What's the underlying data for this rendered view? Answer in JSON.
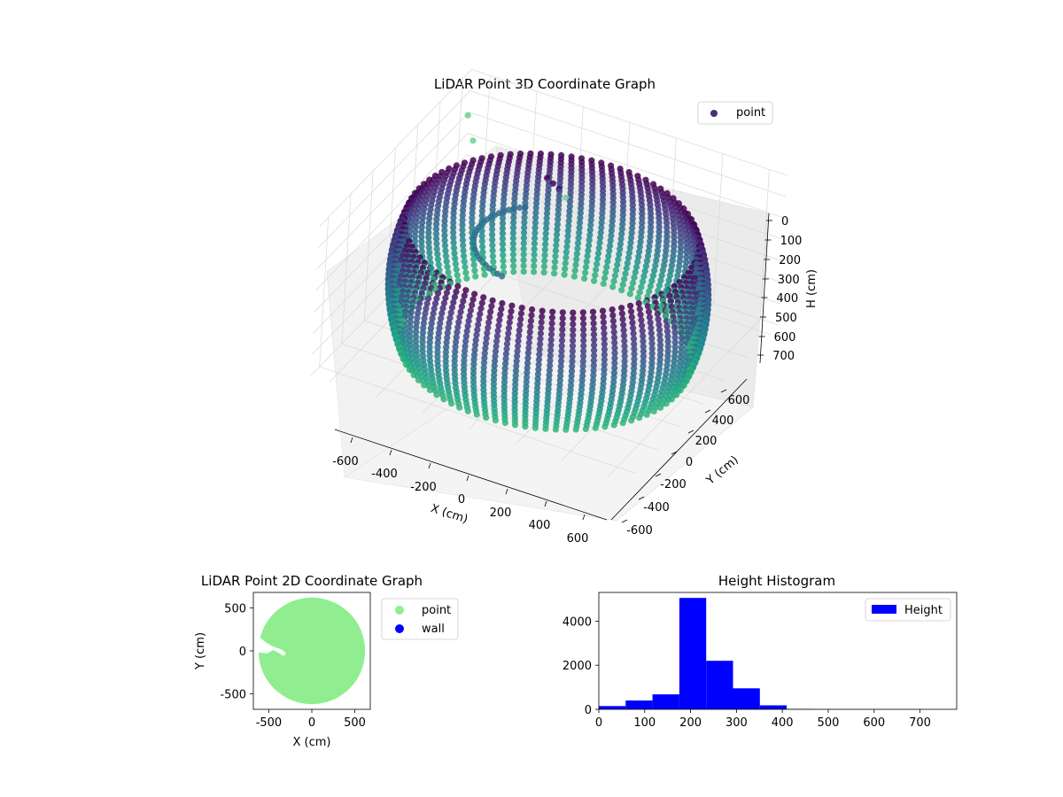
{
  "chart_data": [
    {
      "type": "scatter",
      "projection": "3d",
      "title": "LiDAR Point 3D Coordinate Graph",
      "xlabel": "X (cm)",
      "ylabel": "Y (cm)",
      "zlabel": "H (cm)",
      "xticks": [
        -600,
        -400,
        -200,
        0,
        200,
        400,
        600
      ],
      "yticks": [
        -600,
        -400,
        -200,
        0,
        200,
        400,
        600
      ],
      "zticks": [
        0,
        100,
        200,
        300,
        400,
        500,
        600,
        700
      ],
      "z_inverted": true,
      "grid": true,
      "legend": {
        "entries": [
          "point"
        ],
        "position": "top-right"
      },
      "colormap": "viridis",
      "series": [
        {
          "name": "point",
          "shape": "ring",
          "radius": 620,
          "z_range": [
            150,
            700
          ]
        }
      ]
    },
    {
      "type": "scatter",
      "title": "LiDAR Point 2D Coordinate Graph",
      "xlabel": "X (cm)",
      "ylabel": "Y (cm)",
      "xticks": [
        -500,
        0,
        500
      ],
      "yticks": [
        -500,
        0,
        500
      ],
      "xlim": [
        -680,
        680
      ],
      "ylim": [
        -680,
        680
      ],
      "legend": {
        "entries": [
          "point",
          "wall"
        ],
        "position": "right outside"
      },
      "series": [
        {
          "name": "point",
          "color": "#90ee90",
          "shape": "filled disc",
          "radius": 620
        },
        {
          "name": "wall",
          "color": "#0000ff"
        }
      ]
    },
    {
      "type": "bar",
      "subtype": "histogram",
      "title": "Height Histogram",
      "xlim": [
        0,
        780
      ],
      "ylim": [
        0,
        5300
      ],
      "xticks": [
        0,
        100,
        200,
        300,
        400,
        500,
        600,
        700
      ],
      "yticks": [
        0,
        2000,
        4000
      ],
      "legend": {
        "entries": [
          "Height"
        ],
        "position": "top-right"
      },
      "bin_edges": [
        0,
        58.5,
        117,
        175.5,
        234,
        292.5,
        351,
        409.5,
        468,
        526.5,
        585,
        643.5,
        702,
        760.5
      ],
      "values": [
        150,
        400,
        680,
        5050,
        2200,
        950,
        180,
        20,
        10,
        5,
        5,
        3,
        2
      ],
      "series": [
        {
          "name": "Height",
          "color": "#0000ff"
        }
      ]
    }
  ]
}
